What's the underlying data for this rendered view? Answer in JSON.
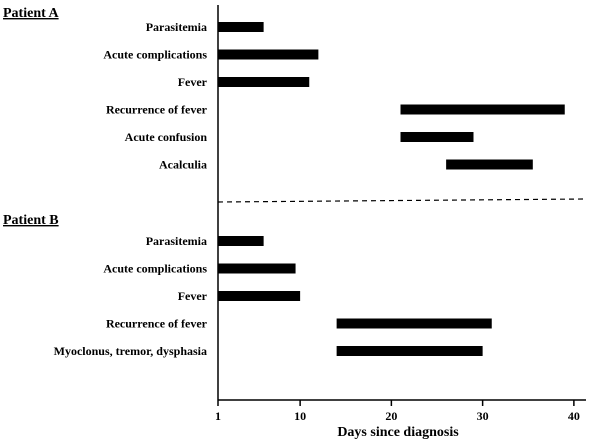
{
  "chart_data": {
    "type": "bar",
    "orientation": "horizontal-range",
    "xlabel": "Days since diagnosis",
    "xlim": [
      1,
      41
    ],
    "xticks": [
      1,
      10,
      20,
      30,
      40
    ],
    "legend": "none",
    "grid": false,
    "panels": [
      {
        "title": "Patient A",
        "bars": [
          {
            "label": "Parasitemia",
            "start": 1,
            "end": 6
          },
          {
            "label": "Acute complications",
            "start": 1,
            "end": 12
          },
          {
            "label": "Fever",
            "start": 1,
            "end": 11
          },
          {
            "label": "Recurrence of fever",
            "start": 21,
            "end": 39
          },
          {
            "label": "Acute confusion",
            "start": 21,
            "end": 29
          },
          {
            "label": "Acalculia",
            "start": 26,
            "end": 35.5
          }
        ]
      },
      {
        "title": "Patient B",
        "bars": [
          {
            "label": "Parasitemia",
            "start": 1,
            "end": 6
          },
          {
            "label": "Acute complications",
            "start": 1,
            "end": 9.5
          },
          {
            "label": "Fever",
            "start": 1,
            "end": 10
          },
          {
            "label": "Recurrence of fever",
            "start": 14,
            "end": 31
          },
          {
            "label": "Myoclonus, tremor, dysphasia",
            "start": 14,
            "end": 30
          }
        ]
      }
    ]
  }
}
